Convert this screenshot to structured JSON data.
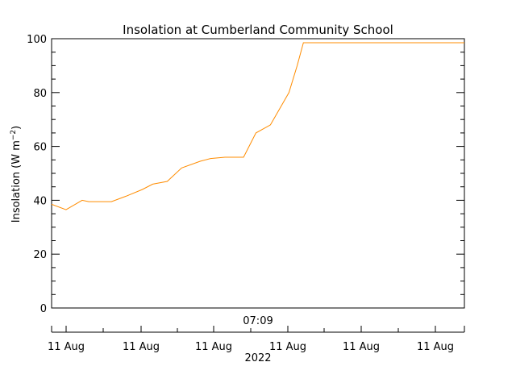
{
  "chart_data": {
    "type": "line",
    "title": "Insolation at Cumberland Community School",
    "ylabel_main": "Insolation (W m",
    "ylabel_sup": "−2",
    "ylabel_close": ")",
    "ylim": [
      0,
      100
    ],
    "yticks": [
      0,
      20,
      40,
      60,
      80,
      100
    ],
    "time_label": "07:09",
    "date_ticks": [
      "11 Aug",
      "11 Aug",
      "11 Aug",
      "11 Aug",
      "11 Aug",
      "11 Aug"
    ],
    "year_label": "2022",
    "grid": false,
    "series": [
      {
        "color": "#ff8c00",
        "x_fraction": [
          0,
          0.035,
          0.074,
          0.09,
          0.145,
          0.18,
          0.22,
          0.245,
          0.28,
          0.315,
          0.36,
          0.385,
          0.42,
          0.465,
          0.495,
          0.53,
          0.575,
          0.595,
          0.61,
          0.65,
          1.0
        ],
        "values": [
          38.5,
          36.5,
          40,
          39.5,
          39.5,
          41.5,
          44,
          46,
          47,
          52,
          54.5,
          55.5,
          56,
          56,
          65,
          68,
          80,
          90,
          98.5,
          98.5,
          98.5
        ]
      }
    ]
  }
}
